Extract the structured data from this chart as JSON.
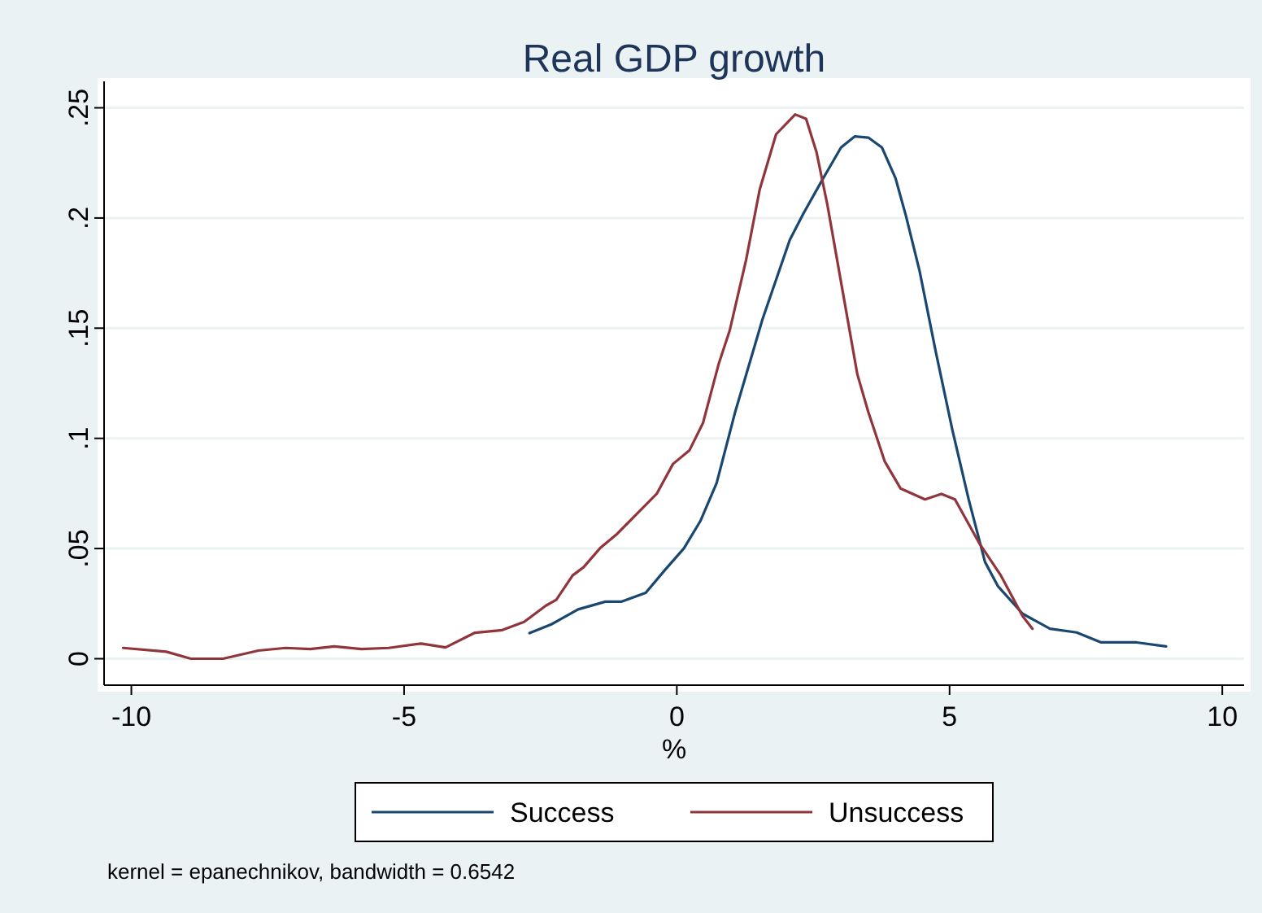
{
  "chart_data": {
    "type": "line",
    "title": "Real GDP growth",
    "xlabel": "%",
    "xlim": [
      -10.5,
      10.4
    ],
    "xticks": [
      -10,
      -5,
      0,
      5,
      10
    ],
    "ylim": [
      -0.012,
      0.262
    ],
    "yticks": [
      {
        "value": 0,
        "label": "0"
      },
      {
        "value": 0.05,
        "label": ".05"
      },
      {
        "value": 0.1,
        "label": ".1"
      },
      {
        "value": 0.15,
        "label": ".15"
      },
      {
        "value": 0.2,
        "label": ".2"
      },
      {
        "value": 0.25,
        "label": ".25"
      }
    ],
    "grid": "y",
    "legend": "bottom",
    "line_style": "solid",
    "annotations": [
      "kernel = epanechnikov, bandwidth = 0.6542"
    ],
    "series": [
      {
        "name": "Success",
        "color": "#1a476f",
        "x": [
          -2.7,
          -2.3,
          -1.81,
          -1.31,
          -1.01,
          -0.57,
          -0.22,
          0.13,
          0.43,
          0.73,
          1.07,
          1.57,
          2.07,
          2.32,
          2.66,
          3.01,
          3.26,
          3.51,
          3.76,
          4.01,
          4.2,
          4.45,
          4.75,
          5.05,
          5.35,
          5.65,
          5.89,
          6.34,
          6.84,
          7.33,
          7.78,
          8.43,
          8.97
        ],
        "values": [
          0.0116,
          0.0156,
          0.0224,
          0.0259,
          0.0259,
          0.0299,
          0.0402,
          0.0501,
          0.0624,
          0.0797,
          0.112,
          0.154,
          0.19,
          0.202,
          0.217,
          0.232,
          0.237,
          0.2365,
          0.232,
          0.218,
          0.201,
          0.176,
          0.139,
          0.104,
          0.0723,
          0.0439,
          0.0328,
          0.0204,
          0.0136,
          0.0119,
          0.0074,
          0.0074,
          0.0056
        ]
      },
      {
        "name": "Unsuccess",
        "color": "#90353b",
        "x": [
          -10.15,
          -9.36,
          -8.91,
          -8.32,
          -7.67,
          -7.17,
          -6.72,
          -6.28,
          -5.78,
          -5.28,
          -4.69,
          -4.24,
          -3.7,
          -3.2,
          -2.8,
          -2.4,
          -2.21,
          -1.91,
          -1.71,
          -1.41,
          -1.11,
          -0.72,
          -0.37,
          -0.07,
          0.23,
          0.48,
          0.77,
          0.97,
          1.27,
          1.52,
          1.82,
          2.17,
          2.37,
          2.56,
          2.76,
          3.06,
          3.31,
          3.51,
          3.81,
          4.1,
          4.55,
          4.85,
          5.1,
          5.54,
          5.94,
          6.34,
          6.52
        ],
        "values": [
          0.0049,
          0.0032,
          0,
          0,
          0.0037,
          0.0049,
          0.0044,
          0.0056,
          0.0044,
          0.0049,
          0.0069,
          0.0051,
          0.0118,
          0.013,
          0.0167,
          0.0241,
          0.0267,
          0.0378,
          0.0415,
          0.0501,
          0.0563,
          0.0661,
          0.0748,
          0.0884,
          0.0945,
          0.107,
          0.134,
          0.149,
          0.181,
          0.213,
          0.238,
          0.247,
          0.245,
          0.23,
          0.206,
          0.164,
          0.129,
          0.112,
          0.0896,
          0.0773,
          0.0723,
          0.0748,
          0.0723,
          0.0526,
          0.0378,
          0.0193,
          0.0136
        ]
      }
    ]
  }
}
